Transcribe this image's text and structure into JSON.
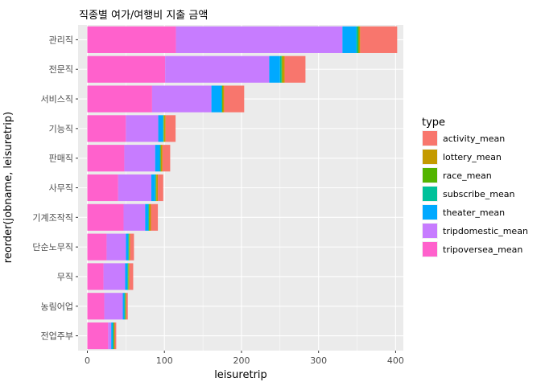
{
  "chart_data": {
    "type": "bar",
    "orientation": "horizontal",
    "stacked": true,
    "title": "직종별 여가/여행비 지출 금액",
    "xlabel": "leisuretrip",
    "ylabel": "reorder(jobname, leisuretrip)",
    "xlim": [
      -12,
      410
    ],
    "x_ticks": [
      0,
      100,
      200,
      300,
      400
    ],
    "x_tick_labels": [
      "0",
      "100",
      "200",
      "300",
      "400"
    ],
    "grid": true,
    "legend": {
      "title": "type",
      "position": "right"
    },
    "categories": [
      "관리직",
      "전문직",
      "서비스직",
      "기능직",
      "판매직",
      "사무직",
      "기계조작직",
      "단순노무직",
      "무직",
      "농림어업",
      "전업주부"
    ],
    "series": [
      {
        "name": "tripoversea_mean",
        "color": "#FF61CC",
        "values": [
          115,
          101,
          84,
          50,
          48,
          40,
          47,
          25,
          21,
          22,
          27
        ]
      },
      {
        "name": "tripdomestic_mean",
        "color": "#C77CFF",
        "values": [
          216,
          135,
          77,
          42,
          40,
          43,
          28,
          25,
          28,
          24,
          4
        ]
      },
      {
        "name": "theater_mean",
        "color": "#00A9FF",
        "values": [
          18,
          14,
          13,
          6,
          6,
          5,
          4,
          3,
          3,
          2,
          2
        ]
      },
      {
        "name": "subscribe_mean",
        "color": "#00C19A",
        "values": [
          2,
          2,
          1,
          1,
          1,
          1,
          1,
          1,
          1,
          1,
          1
        ]
      },
      {
        "name": "race_mean",
        "color": "#53B400",
        "values": [
          1,
          1,
          0.5,
          0.5,
          0.5,
          0.5,
          0.5,
          0.5,
          0.5,
          0.5,
          0.5
        ]
      },
      {
        "name": "lottery_mean",
        "color": "#C49A00",
        "values": [
          2,
          3,
          2,
          2,
          2,
          2,
          2,
          1,
          1,
          1,
          1
        ]
      },
      {
        "name": "activity_mean",
        "color": "#F8766D",
        "values": [
          48,
          27,
          26,
          13,
          10,
          7,
          9,
          5,
          5,
          2,
          2
        ]
      }
    ],
    "legend_entries": [
      {
        "name": "activity_mean",
        "color": "#F8766D"
      },
      {
        "name": "lottery_mean",
        "color": "#C49A00"
      },
      {
        "name": "race_mean",
        "color": "#53B400"
      },
      {
        "name": "subscribe_mean",
        "color": "#00C19A"
      },
      {
        "name": "theater_mean",
        "color": "#00A9FF"
      },
      {
        "name": "tripdomestic_mean",
        "color": "#C77CFF"
      },
      {
        "name": "tripoversea_mean",
        "color": "#FF61CC"
      }
    ],
    "colors": {
      "panel_background": "#EBEBEB",
      "grid_major": "#FFFFFF",
      "tick_text": "#4D4D4D"
    }
  }
}
